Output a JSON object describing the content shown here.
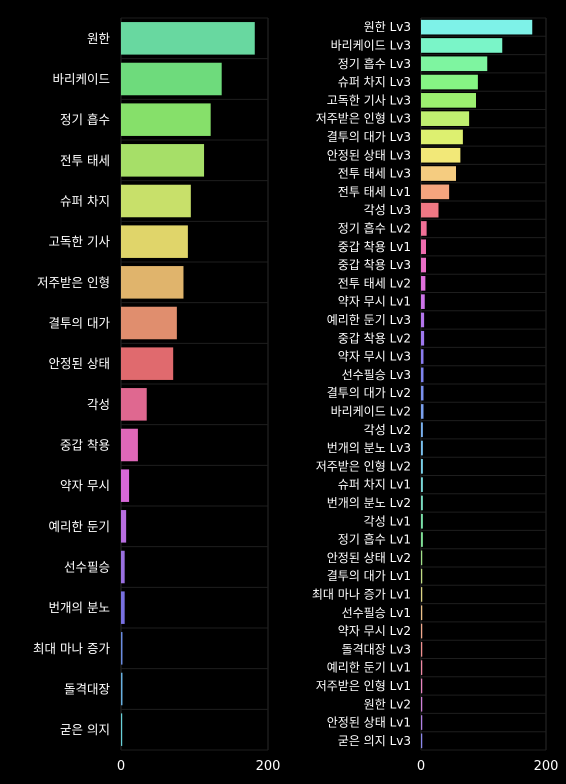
{
  "chart_data": [
    {
      "type": "bar",
      "orientation": "horizontal",
      "categories": [
        "원한",
        "바리케이드",
        "정기 흡수",
        "전투 태세",
        "슈퍼 차지",
        "고독한 기사",
        "저주받은 인형",
        "결투의 대가",
        "안정된 상태",
        "각성",
        "중갑 착용",
        "약자 무시",
        "예리한 둔기",
        "선수필승",
        "번개의 분노",
        "최대 마나 증가",
        "돌격대장",
        "굳은 의지"
      ],
      "values": [
        182,
        137,
        122,
        113,
        95,
        91,
        85,
        76,
        71,
        35,
        23,
        11,
        7,
        5,
        5,
        2,
        2,
        1
      ],
      "colors": [
        "#68d8a0",
        "#6edb7c",
        "#86e06a",
        "#a6df68",
        "#c8e06a",
        "#e0d56a",
        "#e0b46c",
        "#e08e6e",
        "#e06a6e",
        "#df6890",
        "#df68b8",
        "#d868d8",
        "#b86ee0",
        "#9a70e0",
        "#7870e0",
        "#6a8ce0",
        "#68b0e0",
        "#68d0d8"
      ],
      "xticks": [
        0,
        200
      ],
      "xlim": [
        0,
        200
      ],
      "grid": true
    },
    {
      "type": "bar",
      "orientation": "horizontal",
      "categories": [
        "원한 Lv3",
        "바리케이드 Lv3",
        "정기 흡수 Lv3",
        "슈퍼 차지 Lv3",
        "고독한 기사 Lv3",
        "저주받은 인형 Lv3",
        "결투의 대가 Lv3",
        "안정된 상태 Lv3",
        "전투 태세 Lv3",
        "전투 태세 Lv1",
        "각성 Lv3",
        "정기 흡수 Lv2",
        "중갑 착용 Lv1",
        "중갑 착용 Lv3",
        "전투 태세 Lv2",
        "약자 무시 Lv1",
        "예리한 둔기 Lv3",
        "중갑 착용 Lv2",
        "약자 무시 Lv3",
        "선수필승 Lv3",
        "결투의 대가 Lv2",
        "바리케이드 Lv2",
        "각성 Lv2",
        "번개의 분노 Lv3",
        "저주받은 인형 Lv2",
        "슈퍼 차지 Lv1",
        "번개의 분노 Lv2",
        "각성 Lv1",
        "정기 흡수 Lv1",
        "안정된 상태 Lv2",
        "결투의 대가 Lv1",
        "최대 마나 증가 Lv1",
        "선수필승 Lv1",
        "약자 무시 Lv2",
        "돌격대장 Lv3",
        "예리한 둔기 Lv1",
        "저주받은 인형 Lv1",
        "원한 Lv2",
        "안정된 상태 Lv1",
        "굳은 의지 Lv3"
      ],
      "values": [
        178,
        130,
        106,
        91,
        88,
        77,
        67,
        63,
        56,
        45,
        28,
        9,
        8,
        8,
        7,
        6,
        5,
        5,
        4,
        4,
        4,
        4,
        3,
        3,
        3,
        3,
        3,
        3,
        3,
        2,
        2,
        2,
        2,
        2,
        2,
        2,
        2,
        2,
        2,
        2
      ],
      "colors": [
        "#7ef2e8",
        "#7af5c8",
        "#7ef5a0",
        "#86f584",
        "#9cf070",
        "#c0f070",
        "#ddf070",
        "#f2e878",
        "#f5cc80",
        "#f5a47e",
        "#f07884",
        "#f07096",
        "#ee6cae",
        "#ea6ec6",
        "#e070dc",
        "#cc74e8",
        "#b476ec",
        "#9e78ee",
        "#8a7cee",
        "#7e84ee",
        "#7a90ee",
        "#7aa0ee",
        "#7ab0ee",
        "#7ac0ee",
        "#7ad0e8",
        "#7ad8d8",
        "#7adcc0",
        "#7ae0a8",
        "#80e096",
        "#a0e088",
        "#c0dc84",
        "#dcd484",
        "#ecc088",
        "#f0a88c",
        "#f09090",
        "#ee88a4",
        "#e884c0",
        "#d080d8",
        "#b080e4",
        "#8c88ec"
      ],
      "xticks": [
        0,
        200
      ],
      "xlim": [
        0,
        200
      ],
      "grid": true
    }
  ]
}
